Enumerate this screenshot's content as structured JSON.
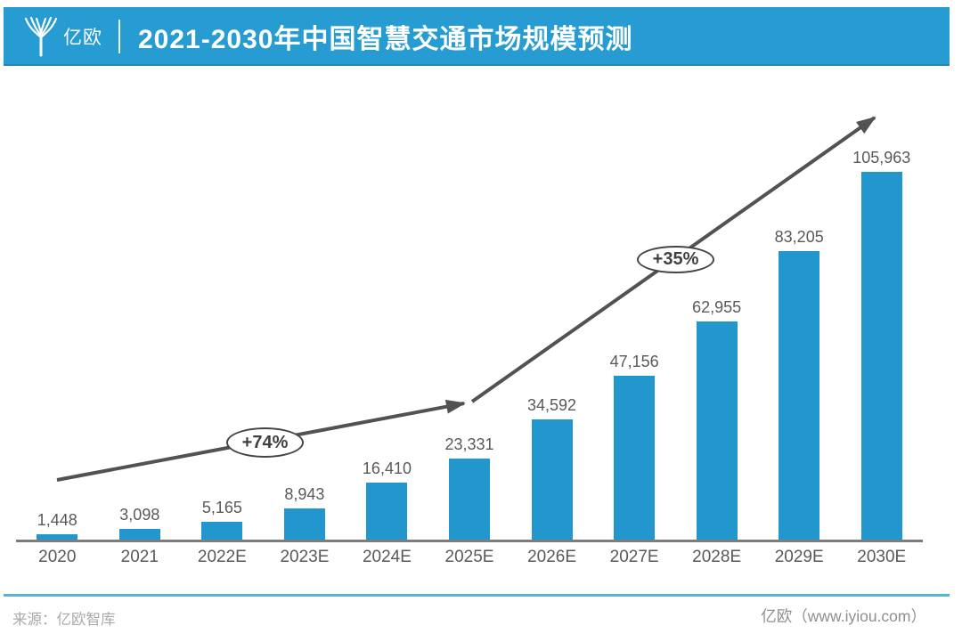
{
  "header": {
    "brand": "亿欧",
    "title": "2021-2030年中国智慧交通市场规模预测"
  },
  "chart_data": {
    "type": "bar",
    "title": "2021-2030年中国智慧交通市场规模预测",
    "categories": [
      "2020",
      "2021",
      "2022E",
      "2023E",
      "2024E",
      "2025E",
      "2026E",
      "2027E",
      "2028E",
      "2029E",
      "2030E"
    ],
    "values": [
      1448,
      3098,
      5165,
      8943,
      16410,
      23331,
      34592,
      47156,
      62955,
      83205,
      105963
    ],
    "value_labels": [
      "1,448",
      "3,098",
      "5,165",
      "8,943",
      "16,410",
      "23,331",
      "34,592",
      "47,156",
      "62,955",
      "83,205",
      "105,963"
    ],
    "xlabel": "",
    "ylabel": "",
    "ylim": [
      0,
      110000
    ],
    "grid": false,
    "legend": "none",
    "bar_color": "#2297CE",
    "annotations": [
      {
        "label": "+74%"
      },
      {
        "label": "+35%"
      }
    ]
  },
  "footer": {
    "source": "来源：亿欧智库",
    "brand": "亿欧（www.iyiou.com）"
  },
  "colors": {
    "banner_blue": "#269CD2",
    "bar_blue": "#2297CE",
    "arrow_gray": "#525252",
    "axis_gray": "#7C7C7C",
    "label_gray": "#595959",
    "footer_line_blue": "#55B4DB",
    "footer_text_gray": "#A9A9A9"
  },
  "icons": {
    "logo": "iyiou-sprout-logo-icon"
  }
}
